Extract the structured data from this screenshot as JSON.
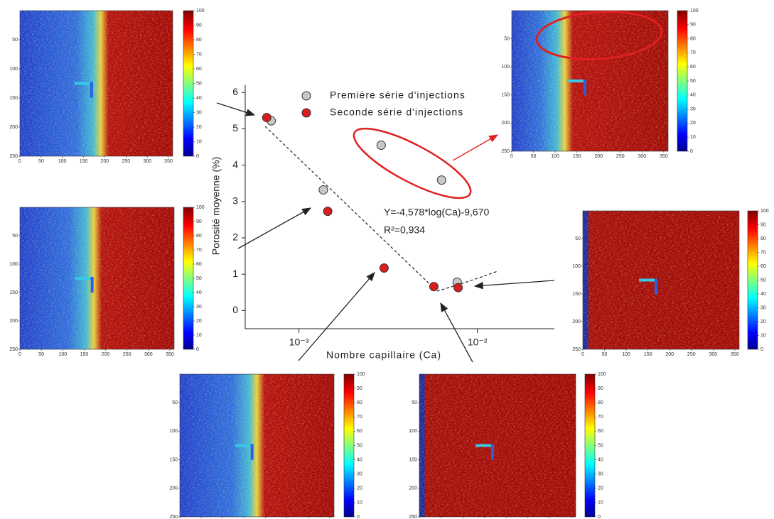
{
  "chart_data": {
    "type": "scatter",
    "x_label": "Nombre capillaire (Ca)",
    "y_label": "Porosité moyenne (%)",
    "log_x": true,
    "xlim": [
      0.0005,
      0.027
    ],
    "xticks": [
      {
        "value": 0.001,
        "label": "10⁻³"
      },
      {
        "value": 0.01,
        "label": "10⁻²"
      }
    ],
    "ylim": [
      -0.5,
      6.2
    ],
    "yticks": [
      0,
      1,
      2,
      3,
      4,
      5,
      6
    ],
    "legend": "top",
    "series": [
      {
        "name": "Première série d'injections",
        "color": "#c8c8c8",
        "x": [
          0.0007,
          0.00137,
          0.00289,
          0.0063,
          0.0077
        ],
        "values": [
          5.22,
          3.32,
          4.55,
          3.59,
          0.78
        ]
      },
      {
        "name": "Seconde série d'injections",
        "color": "#d81e1e",
        "x": [
          0.00066,
          0.00145,
          0.003,
          0.0057,
          0.0078
        ],
        "values": [
          5.31,
          2.73,
          1.17,
          0.66,
          0.63
        ]
      }
    ],
    "annotations": [
      "Y=-4,578*log(Ca)-9,670",
      "R²=0,934"
    ]
  },
  "heatmaps": {
    "xlim": [
      0,
      360
    ],
    "ylim": [
      0,
      250
    ],
    "xticks": [
      0,
      50,
      100,
      150,
      200,
      250,
      300,
      350
    ],
    "yticks": [
      50,
      100,
      150,
      200,
      250
    ],
    "clim": [
      0,
      100
    ],
    "colorbar_ticks": [
      0,
      10,
      20,
      30,
      40,
      50,
      60,
      70,
      80,
      90,
      100
    ]
  }
}
